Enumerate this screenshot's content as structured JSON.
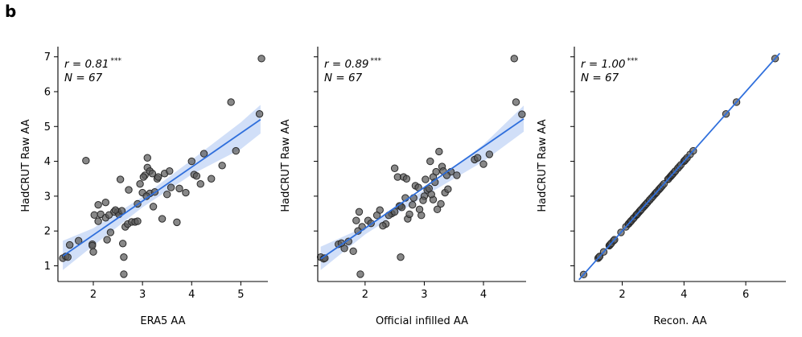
{
  "panel_label": "b",
  "colors": {
    "fit_line": "#2f6fdc",
    "band": "#c9d9f7",
    "point_fill": "#5a5a5a",
    "point_stroke": "#2a2a2a"
  },
  "chart_data": [
    {
      "type": "scatter",
      "xlabel": "ERA5 AA",
      "ylabel": "HadCRUT Raw AA",
      "xlim": [
        1.28,
        5.55
      ],
      "ylim": [
        0.55,
        7.2
      ],
      "xticks": [
        2,
        3,
        4,
        5
      ],
      "yticks": [
        1,
        2,
        3,
        4,
        5,
        6,
        7
      ],
      "show_yticklabels": true,
      "stat_r": "r = 0.81",
      "stat_sig": "***",
      "stat_n": "N = 67",
      "fit": {
        "x0": 1.38,
        "y0": 1.28,
        "x1": 5.4,
        "y1": 5.2
      },
      "band": {
        "upper": [
          [
            1.38,
            1.72
          ],
          [
            2,
            2.08
          ],
          [
            3,
            2.98
          ],
          [
            4,
            4.04
          ],
          [
            5,
            5.12
          ],
          [
            5.4,
            5.62
          ]
        ],
        "lower": [
          [
            1.38,
            0.88
          ],
          [
            2,
            1.58
          ],
          [
            3,
            2.68
          ],
          [
            4,
            3.62
          ],
          [
            5,
            4.35
          ],
          [
            5.4,
            4.8
          ]
        ]
      },
      "x": [
        1.38,
        1.44,
        1.52,
        1.7,
        1.85,
        1.98,
        1.98,
        2.0,
        2.02,
        2.1,
        2.15,
        2.25,
        2.25,
        2.35,
        2.42,
        2.5,
        2.52,
        2.6,
        2.62,
        2.62,
        2.65,
        2.7,
        2.72,
        2.78,
        2.85,
        2.9,
        3.0,
        3.05,
        3.1,
        3.1,
        3.15,
        3.15,
        3.2,
        3.25,
        3.3,
        3.4,
        3.45,
        3.5,
        3.55,
        3.7,
        3.75,
        4.0,
        4.05,
        4.1,
        4.25,
        4.4,
        4.62,
        4.8,
        4.9,
        5.38,
        5.42,
        1.48,
        2.1,
        2.28,
        2.45,
        2.55,
        2.9,
        3.02,
        3.08,
        3.22,
        3.32,
        3.58,
        3.88,
        4.18,
        2.58,
        2.32,
        2.95
      ],
      "y": [
        1.22,
        1.27,
        1.6,
        1.72,
        4.02,
        1.62,
        1.58,
        1.4,
        2.46,
        2.28,
        2.48,
        2.82,
        2.38,
        1.96,
        2.55,
        2.55,
        2.48,
        1.64,
        0.76,
        1.25,
        2.12,
        2.2,
        3.18,
        2.26,
        2.26,
        2.28,
        3.1,
        3.6,
        4.1,
        3.82,
        3.72,
        3.08,
        3.65,
        3.12,
        3.5,
        2.35,
        3.65,
        3.05,
        3.72,
        2.25,
        3.22,
        4.0,
        3.62,
        3.58,
        4.22,
        3.5,
        3.88,
        5.7,
        4.3,
        5.36,
        6.95,
        1.25,
        2.75,
        1.75,
        2.6,
        3.48,
        2.78,
        3.55,
        3.0,
        2.7,
        3.55,
        3.25,
        3.1,
        3.35,
        2.58,
        2.46,
        3.35
      ]
    },
    {
      "type": "scatter",
      "xlabel": "Official infilled AA",
      "ylabel": "HadCRUT Raw AA",
      "xlim": [
        1.2,
        4.72
      ],
      "ylim": [
        0.55,
        7.2
      ],
      "xticks": [
        2,
        3,
        4
      ],
      "yticks": [
        1,
        2,
        3,
        4,
        5,
        6,
        7
      ],
      "show_yticklabels": false,
      "stat_r": "r = 0.89",
      "stat_sig": "***",
      "stat_n": "N = 67",
      "fit": {
        "x0": 1.25,
        "y0": 1.2,
        "x1": 4.68,
        "y1": 5.22
      },
      "band": {
        "upper": [
          [
            1.25,
            1.55
          ],
          [
            2,
            2.12
          ],
          [
            3,
            3.18
          ],
          [
            4,
            4.48
          ],
          [
            4.68,
            5.6
          ]
        ],
        "lower": [
          [
            1.25,
            0.88
          ],
          [
            2,
            1.9
          ],
          [
            3,
            3.0
          ],
          [
            4,
            4.0
          ],
          [
            4.68,
            4.85
          ]
        ]
      },
      "x": [
        1.25,
        1.3,
        1.32,
        1.55,
        1.65,
        1.72,
        1.8,
        1.85,
        1.9,
        1.92,
        1.95,
        2.05,
        2.1,
        2.25,
        2.35,
        2.45,
        2.5,
        2.55,
        2.6,
        2.6,
        2.65,
        2.7,
        2.72,
        2.8,
        2.85,
        2.9,
        2.95,
        3.0,
        3.05,
        3.1,
        3.15,
        3.15,
        3.2,
        3.25,
        3.3,
        3.35,
        3.4,
        3.45,
        3.55,
        3.85,
        3.9,
        4.0,
        4.1,
        4.52,
        4.55,
        4.65,
        1.6,
        1.88,
        2.2,
        2.4,
        2.58,
        2.68,
        2.75,
        2.92,
        3.02,
        3.12,
        3.22,
        3.28,
        3.38,
        2.5,
        2.62,
        2.82,
        2.98,
        3.18,
        3.32,
        2.3,
        3.08
      ],
      "y": [
        1.25,
        1.2,
        1.22,
        1.62,
        1.5,
        1.7,
        1.42,
        2.3,
        2.55,
        0.76,
        2.12,
        2.3,
        2.22,
        2.6,
        2.2,
        2.5,
        3.8,
        3.55,
        1.25,
        2.72,
        3.55,
        3.5,
        2.35,
        2.75,
        3.3,
        3.25,
        2.45,
        3.0,
        3.18,
        4.0,
        3.55,
        2.9,
        3.7,
        4.28,
        3.85,
        3.1,
        3.2,
        3.7,
        3.6,
        4.05,
        4.1,
        3.92,
        4.2,
        6.95,
        5.7,
        5.35,
        1.65,
        2.0,
        2.45,
        2.45,
        2.72,
        2.95,
        2.48,
        2.62,
        3.48,
        3.05,
        2.62,
        2.78,
        3.6,
        2.55,
        2.68,
        2.95,
        2.88,
        3.4,
        3.72,
        2.15,
        3.22
      ]
    },
    {
      "type": "scatter",
      "xlabel": "Recon. AA",
      "ylabel": "HadCRUT Raw AA",
      "xlim": [
        0.45,
        7.3
      ],
      "ylim": [
        0.55,
        7.2
      ],
      "xticks": [
        2,
        4,
        6
      ],
      "yticks": [
        1,
        2,
        3,
        4,
        5,
        6,
        7
      ],
      "show_yticklabels": false,
      "stat_r": "r = 1.00",
      "stat_sig": "***",
      "stat_n": "N = 67",
      "fit": {
        "x0": 0.6,
        "y0": 0.6,
        "x1": 7.1,
        "y1": 7.1
      },
      "band": null,
      "x": [
        0.75,
        1.22,
        1.25,
        1.27,
        1.4,
        1.58,
        1.6,
        1.62,
        1.65,
        1.72,
        1.75,
        1.96,
        2.12,
        2.2,
        2.22,
        2.26,
        2.28,
        2.3,
        2.35,
        2.38,
        2.45,
        2.46,
        2.48,
        2.5,
        2.55,
        2.58,
        2.6,
        2.62,
        2.68,
        2.72,
        2.75,
        2.78,
        2.82,
        2.88,
        2.9,
        2.95,
        3.0,
        3.05,
        3.08,
        3.1,
        3.12,
        3.18,
        3.22,
        3.25,
        3.3,
        3.35,
        3.48,
        3.5,
        3.55,
        3.58,
        3.6,
        3.62,
        3.65,
        3.7,
        3.72,
        3.8,
        3.85,
        3.9,
        4.0,
        4.02,
        4.05,
        4.1,
        4.2,
        4.3,
        5.36,
        5.7,
        6.95
      ],
      "y": [
        0.75,
        1.22,
        1.25,
        1.27,
        1.4,
        1.58,
        1.6,
        1.62,
        1.65,
        1.72,
        1.75,
        1.96,
        2.12,
        2.2,
        2.22,
        2.26,
        2.28,
        2.3,
        2.35,
        2.38,
        2.45,
        2.46,
        2.48,
        2.5,
        2.55,
        2.58,
        2.6,
        2.62,
        2.68,
        2.72,
        2.75,
        2.78,
        2.82,
        2.88,
        2.9,
        2.95,
        3.0,
        3.05,
        3.08,
        3.1,
        3.12,
        3.18,
        3.22,
        3.25,
        3.3,
        3.35,
        3.48,
        3.5,
        3.55,
        3.58,
        3.6,
        3.62,
        3.65,
        3.7,
        3.72,
        3.8,
        3.85,
        3.9,
        4.0,
        4.02,
        4.05,
        4.1,
        4.2,
        4.3,
        5.36,
        5.7,
        6.95
      ]
    }
  ]
}
